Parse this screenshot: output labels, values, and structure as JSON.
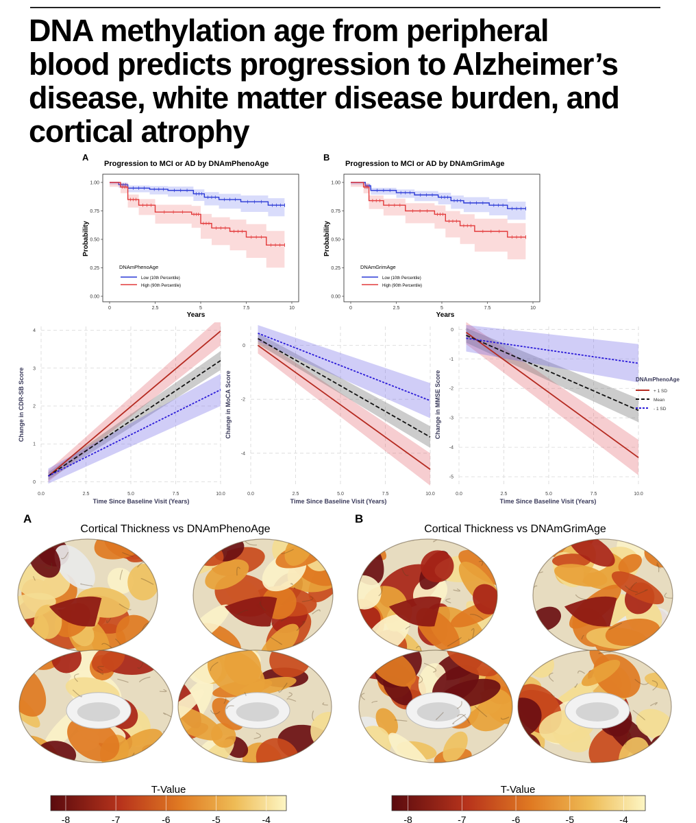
{
  "headline": [
    "DNA methylation age from peripheral",
    "blood predicts progression to Alzheimer’s",
    "disease, white matter disease burden, and",
    "cortical atrophy"
  ],
  "km_panels": [
    {
      "letter": "A",
      "title": "Progression to MCI or AD by DNAmPhenoAge",
      "xlabel": "Years",
      "ylabel": "Probability",
      "legend_title": "DNAmPhenoAge",
      "low_label": "Low (10th Percentile)",
      "high_label": "High (90th Percentile)"
    },
    {
      "letter": "B",
      "title": "Progression to MCI or AD by DNAmGrimAge",
      "xlabel": "Years",
      "ylabel": "Probability",
      "legend_title": "DNAmGrimAge",
      "low_label": "Low (10th Percentile)",
      "high_label": "High (90th Percentile)"
    }
  ],
  "traj_panels": [
    {
      "ylabel": "Change in CDR-SB Score",
      "xlabel": "Time Since Baseline Visit (Years)"
    },
    {
      "ylabel": "Change in MoCA Score",
      "xlabel": "Time Since Baseline Visit (Years)"
    },
    {
      "ylabel": "Change in MMSE Score",
      "xlabel": "Time Since Baseline Visit (Years)"
    }
  ],
  "traj_legend": {
    "title": "DNAmPhenoAge",
    "items": [
      "+ 1 SD",
      "Mean",
      "- 1 SD"
    ]
  },
  "brain_panels": [
    {
      "letter": "A",
      "title": "Cortical Thickness vs DNAmPhenoAge",
      "colorbar_title": "T-Value",
      "ticks": [
        "-8",
        "-7",
        "-6",
        "-5",
        "-4"
      ]
    },
    {
      "letter": "B",
      "title": "Cortical Thickness vs DNAmGrimAge",
      "colorbar_title": "T-Value",
      "ticks": [
        "-8",
        "-7",
        "-6",
        "-5",
        "-4"
      ]
    }
  ],
  "colors": {
    "high_red": "#e2393a",
    "low_blue": "#2a39d6",
    "plus_sd": "#b52a20",
    "mean": "#111111",
    "minus_sd": "#2a1ad8",
    "brain_dark": "#6b0f12",
    "brain_light": "#fdf6c4"
  },
  "chart_data": [
    {
      "type": "line",
      "title": "Progression to MCI or AD by DNAmPhenoAge",
      "xlabel": "Years",
      "ylabel": "Probability",
      "xlim": [
        0,
        10
      ],
      "ylim": [
        0,
        1
      ],
      "xticks": [
        "0",
        "2.5",
        "5",
        "7.5",
        "10"
      ],
      "yticks": [
        "0.00",
        "0.25",
        "0.50",
        "0.75",
        "1.00"
      ],
      "legend_title": "DNAmPhenoAge",
      "legend": "bottom-left",
      "series": [
        {
          "name": "Low (10th Percentile)",
          "x": [
            0,
            0.5,
            1.0,
            2.2,
            3.2,
            4.6,
            5.2,
            6.0,
            7.2,
            8.7,
            9.6
          ],
          "y": [
            1.0,
            0.98,
            0.95,
            0.94,
            0.93,
            0.9,
            0.87,
            0.85,
            0.83,
            0.8,
            0.8
          ]
        },
        {
          "name": "High (90th Percentile)",
          "x": [
            0,
            0.6,
            1.0,
            1.6,
            2.5,
            4.5,
            5.0,
            5.6,
            6.6,
            7.5,
            8.6,
            9.6
          ],
          "y": [
            1.0,
            0.96,
            0.85,
            0.8,
            0.74,
            0.72,
            0.64,
            0.6,
            0.57,
            0.52,
            0.45,
            0.45
          ]
        }
      ]
    },
    {
      "type": "line",
      "title": "Progression to MCI or AD by DNAmGrimAge",
      "xlabel": "Years",
      "ylabel": "Probability",
      "xlim": [
        0,
        10
      ],
      "ylim": [
        0,
        1
      ],
      "xticks": [
        "0",
        "2.5",
        "5",
        "7.5",
        "10"
      ],
      "yticks": [
        "0.00",
        "0.25",
        "0.50",
        "0.75",
        "1.00"
      ],
      "legend_title": "DNAmGrimAge",
      "legend": "bottom-left",
      "series": [
        {
          "name": "Low (10th Percentile)",
          "x": [
            0,
            0.8,
            1.1,
            2.5,
            3.5,
            4.8,
            5.5,
            6.2,
            7.6,
            8.6,
            9.6
          ],
          "y": [
            1.0,
            0.97,
            0.93,
            0.91,
            0.89,
            0.87,
            0.84,
            0.82,
            0.8,
            0.77,
            0.77
          ]
        },
        {
          "name": "High (90th Percentile)",
          "x": [
            0,
            0.7,
            1.0,
            1.8,
            3.0,
            4.6,
            5.2,
            6.0,
            6.8,
            8.6,
            9.6
          ],
          "y": [
            1.0,
            0.96,
            0.84,
            0.8,
            0.75,
            0.72,
            0.66,
            0.62,
            0.57,
            0.52,
            0.52
          ]
        }
      ]
    },
    {
      "type": "line",
      "xlabel": "Time Since Baseline Visit (Years)",
      "ylabel": "Change in CDR-SB Score",
      "xlim": [
        0,
        10
      ],
      "ylim": [
        -0.1,
        4.1
      ],
      "xticks": [
        "0.0",
        "2.5",
        "5.0",
        "7.5",
        "10.0"
      ],
      "yticks": [
        "0",
        "1",
        "2",
        "3",
        "4"
      ],
      "series": [
        {
          "name": "+ 1 SD",
          "x": [
            0.4,
            10
          ],
          "y": [
            0.15,
            3.98
          ],
          "ci_low": [
            0.0,
            3.6
          ],
          "ci_high": [
            0.3,
            4.35
          ]
        },
        {
          "name": "Mean",
          "x": [
            0.4,
            10
          ],
          "y": [
            0.15,
            3.2
          ],
          "ci_low": [
            0.05,
            2.95
          ],
          "ci_high": [
            0.25,
            3.45
          ]
        },
        {
          "name": "- 1 SD",
          "x": [
            0.4,
            10
          ],
          "y": [
            0.15,
            2.43
          ],
          "ci_low": [
            -0.05,
            2.0
          ],
          "ci_high": [
            0.35,
            2.85
          ]
        }
      ]
    },
    {
      "type": "line",
      "xlabel": "Time Since Baseline Visit (Years)",
      "ylabel": "Change in MoCA Score",
      "xlim": [
        0,
        10
      ],
      "ylim": [
        -5.2,
        0.7
      ],
      "xticks": [
        "0.0",
        "2.5",
        "5.0",
        "7.5",
        "10.0"
      ],
      "yticks": [
        "-4",
        "-2",
        "0"
      ],
      "series": [
        {
          "name": "+ 1 SD",
          "x": [
            0.4,
            10
          ],
          "y": [
            0.0,
            -4.6
          ],
          "ci_low": [
            -0.3,
            -5.2
          ],
          "ci_high": [
            0.3,
            -4.0
          ]
        },
        {
          "name": "Mean",
          "x": [
            0.4,
            10
          ],
          "y": [
            0.25,
            -3.4
          ],
          "ci_low": [
            0.05,
            -3.8
          ],
          "ci_high": [
            0.45,
            -3.0
          ]
        },
        {
          "name": "- 1 SD",
          "x": [
            0.4,
            10
          ],
          "y": [
            0.45,
            -2.05
          ],
          "ci_low": [
            0.15,
            -2.7
          ],
          "ci_high": [
            0.75,
            -1.4
          ]
        }
      ]
    },
    {
      "type": "line",
      "xlabel": "Time Since Baseline Visit (Years)",
      "ylabel": "Change in MMSE Score",
      "xlim": [
        0,
        10
      ],
      "ylim": [
        -5.3,
        0.1
      ],
      "xticks": [
        "0.0",
        "2.5",
        "5.0",
        "7.5",
        "10.0"
      ],
      "yticks": [
        "-5",
        "-4",
        "-3",
        "-2",
        "-1",
        "0"
      ],
      "legend_title": "DNAmPhenoAge",
      "legend": "right",
      "series": [
        {
          "name": "+ 1 SD",
          "x": [
            0.4,
            10
          ],
          "y": [
            -0.1,
            -4.35
          ],
          "ci_low": [
            -0.5,
            -4.95
          ],
          "ci_high": [
            0.25,
            -3.75
          ]
        },
        {
          "name": "Mean",
          "x": [
            0.4,
            10
          ],
          "y": [
            -0.2,
            -2.75
          ],
          "ci_low": [
            -0.45,
            -3.15
          ],
          "ci_high": [
            0.05,
            -2.35
          ]
        },
        {
          "name": "- 1 SD",
          "x": [
            0.4,
            10
          ],
          "y": [
            -0.3,
            -1.15
          ],
          "ci_low": [
            -0.75,
            -1.8
          ],
          "ci_high": [
            0.15,
            -0.5
          ]
        }
      ]
    }
  ]
}
